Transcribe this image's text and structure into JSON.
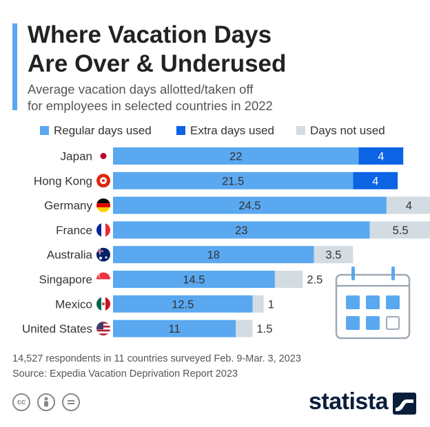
{
  "header": {
    "title_line1": "Where Vacation Days",
    "title_line2": "Are Over & Underused",
    "subtitle_line1": "Average vacation days allotted/taken off",
    "subtitle_line2": "for employees in selected countries in 2022"
  },
  "colors": {
    "regular": "#5aa8f0",
    "extra": "#0c63e4",
    "notused": "#d3dbe3"
  },
  "chart_data": {
    "type": "bar",
    "orientation": "horizontal",
    "stacked": true,
    "categories": [
      "Japan",
      "Hong Kong",
      "Germany",
      "France",
      "Australia",
      "Singapore",
      "Mexico",
      "United States"
    ],
    "series": [
      {
        "name": "Regular days used",
        "values": [
          22,
          21.5,
          24.5,
          23,
          18,
          14.5,
          12.5,
          11
        ]
      },
      {
        "name": "Extra days used",
        "values": [
          4,
          4,
          0,
          0,
          0,
          0,
          0,
          0
        ]
      },
      {
        "name": "Days not used",
        "values": [
          0,
          0,
          4,
          5.5,
          3.5,
          2.5,
          1,
          1.5
        ]
      }
    ],
    "value_labels": {
      "regular": [
        "22",
        "21.5",
        "24.5",
        "23",
        "18",
        "14.5",
        "12.5",
        "11"
      ],
      "extra": [
        "4",
        "4",
        "",
        "",
        "",
        "",
        "",
        ""
      ],
      "notused": [
        "",
        "",
        "4",
        "5.5",
        "3.5",
        "2.5",
        "1",
        "1.5"
      ]
    },
    "title": "Where Vacation Days Are Over & Underused",
    "xlabel": "",
    "ylabel": "",
    "xlim": [
      0,
      28.5
    ],
    "legend_position": "top"
  },
  "footer": {
    "note": "14,527 respondents in 11 countries surveyed Feb. 9-Mar. 3, 2023",
    "source": "Source: Expedia Vacation Deprivation Report 2023",
    "brand": "statista"
  }
}
